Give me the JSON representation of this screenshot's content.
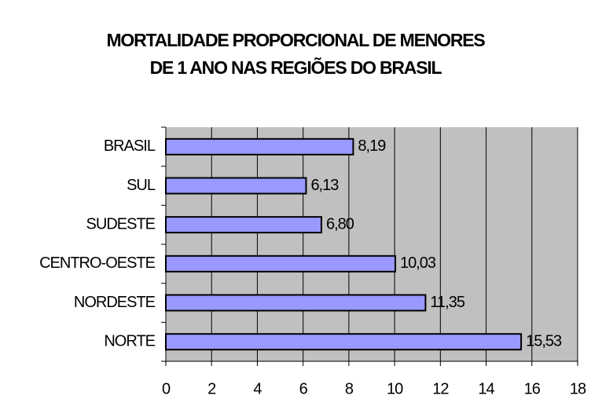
{
  "chart_data": {
    "type": "barh",
    "title": [
      "MORTALIDADE PROPORCIONAL DE MENORES",
      "DE 1 ANO NAS REGIÕES DO BRASIL"
    ],
    "categories": [
      "BRASIL",
      "SUL",
      "SUDESTE",
      "CENTRO-OESTE",
      "NORDESTE",
      "NORTE"
    ],
    "values": [
      8.19,
      6.13,
      6.8,
      10.03,
      11.35,
      15.53
    ],
    "value_labels": [
      "8,19",
      "6,13",
      "6,80",
      "10,03",
      "11,35",
      "15,53"
    ],
    "color": "#9999ff",
    "xlim": [
      0,
      18
    ],
    "xticks": [
      0,
      2,
      4,
      6,
      8,
      10,
      12,
      14,
      16,
      18
    ],
    "grid": true
  }
}
